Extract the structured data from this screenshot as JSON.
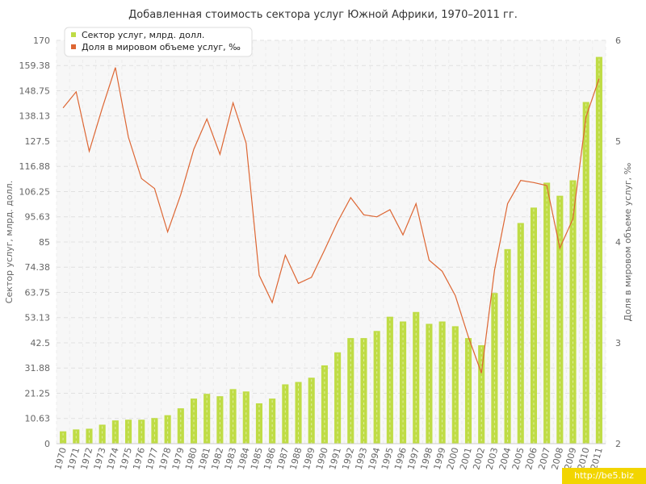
{
  "watermark": "http://be5.biz",
  "chart_data": {
    "type": "bar",
    "title": "Добавленная стоимость сектора услуг Южной Африки, 1970–2011 гг.",
    "ylabel": "Сектор услуг, млрд. долл.",
    "y2label": "Доля в мировом объеме услуг, ‰",
    "ylim": [
      0,
      170
    ],
    "y2lim": [
      2,
      6
    ],
    "yticks": [
      "0",
      "10.63",
      "21.25",
      "31.88",
      "42.5",
      "53.13",
      "63.75",
      "74.38",
      "85",
      "95.63",
      "106.25",
      "116.88",
      "127.5",
      "138.13",
      "148.75",
      "159.38",
      "170"
    ],
    "y2ticks": [
      "2",
      "3",
      "4",
      "5",
      "6"
    ],
    "grid": true,
    "legend_position": "top-left",
    "categories": [
      "1970",
      "1971",
      "1972",
      "1973",
      "1974",
      "1975",
      "1976",
      "1977",
      "1978",
      "1979",
      "1980",
      "1981",
      "1982",
      "1983",
      "1984",
      "1985",
      "1986",
      "1987",
      "1988",
      "1989",
      "1990",
      "1991",
      "1992",
      "1993",
      "1994",
      "1995",
      "1996",
      "1997",
      "1998",
      "1999",
      "2000",
      "2001",
      "2002",
      "2003",
      "2004",
      "2005",
      "2006",
      "2007",
      "2008",
      "2009",
      "2010",
      "2011"
    ],
    "series": [
      {
        "name": "Сектор услуг, млрд. долл.",
        "type": "bar",
        "axis": "left",
        "color": "#bfdc45",
        "values": [
          5.2,
          6.0,
          6.3,
          8.0,
          9.8,
          10.1,
          10.1,
          10.8,
          12.0,
          14.9,
          19.0,
          21.0,
          20.0,
          23.0,
          22.0,
          17.0,
          19.0,
          25.0,
          26.0,
          27.8,
          33.0,
          38.5,
          44.5,
          44.5,
          47.5,
          53.5,
          51.5,
          55.5,
          50.5,
          51.5,
          49.5,
          44.5,
          41.5,
          63.5,
          82.0,
          93.0,
          99.5,
          110.0,
          104.5,
          111.0,
          144.0,
          163.0
        ]
      },
      {
        "name": "Доля в мировом объеме услуг, ‰",
        "type": "line",
        "axis": "right",
        "color": "#dd6633",
        "values": [
          5.33,
          5.49,
          4.9,
          5.33,
          5.73,
          5.04,
          4.63,
          4.53,
          4.1,
          4.47,
          4.92,
          5.22,
          4.87,
          5.38,
          4.98,
          3.67,
          3.4,
          3.87,
          3.59,
          3.65,
          3.92,
          4.2,
          4.44,
          4.27,
          4.25,
          4.32,
          4.07,
          4.38,
          3.82,
          3.71,
          3.47,
          3.06,
          2.7,
          3.72,
          4.38,
          4.61,
          4.59,
          4.56,
          3.94,
          4.23,
          5.24,
          5.62
        ]
      }
    ]
  }
}
